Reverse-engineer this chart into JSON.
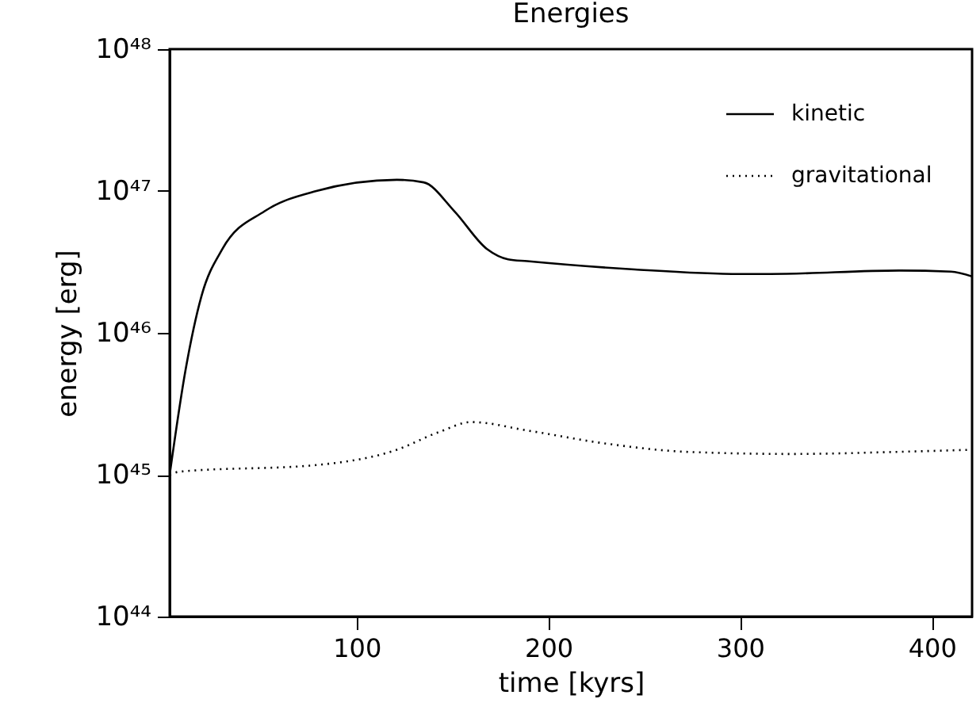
{
  "chart_data": {
    "type": "line",
    "title": "Energies",
    "xlabel": "time [kyrs]",
    "ylabel": "energy [erg]",
    "log": "y",
    "xlim": [
      2.5,
      421
    ],
    "xticks": [
      100,
      200,
      300,
      400
    ],
    "ylim": [
      1e+44,
      1e+48
    ],
    "yticks": [
      {
        "value": 1e+44,
        "label": "10⁴⁴"
      },
      {
        "value": 1e+45,
        "label": "10⁴⁵"
      },
      {
        "value": 1e+46,
        "label": "10⁴⁶"
      },
      {
        "value": 1e+47,
        "label": "10⁴⁷"
      },
      {
        "value": 1e+48,
        "label": "10⁴⁸"
      }
    ],
    "grid": false,
    "legend": "top right",
    "series": [
      {
        "name": "kinetic",
        "color": "#000000",
        "line_style": "solid",
        "x": [
          2.5,
          10.8,
          19,
          30,
          52,
          79,
          121,
          135,
          151,
          168,
          179,
          189,
          245,
          300,
          316,
          383,
          410,
          421
        ],
        "values": [
          1e+45,
          5.5e+45,
          1.8e+46,
          3.9e+46,
          7.2e+46,
          1e+47,
          1.2e+47,
          1.15e+47,
          7.2e+46,
          3.9e+46,
          3.3e+46,
          3.2e+46,
          2.8e+46,
          2.6e+46,
          2.6e+46,
          2.75e+46,
          2.7e+46,
          2.5e+46
        ]
      },
      {
        "name": "gravitational",
        "color": "#000000",
        "line_style": "dotted",
        "x": [
          2.5,
          7.5,
          79,
          121,
          143,
          160,
          189,
          231,
          272,
          327,
          383,
          421
        ],
        "values": [
          1e+45,
          1.05e+45,
          1.17e+45,
          1.5e+45,
          2e+45,
          2.35e+45,
          2.05e+45,
          1.65e+45,
          1.45e+45,
          1.4e+45,
          1.45e+45,
          1.5e+45
        ]
      }
    ]
  }
}
